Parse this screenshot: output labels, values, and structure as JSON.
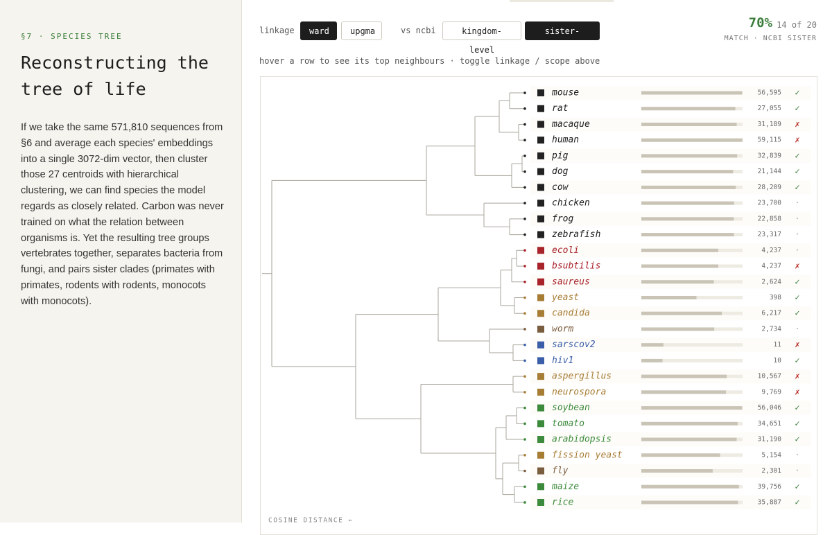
{
  "sidebar": {
    "section": "§7 · SPECIES TREE",
    "title": [
      "Reconstructing the",
      "tree of life"
    ],
    "body": "If we take the same 571,810 sequences from §6 and average each species' embeddings into a single 3072-dim vector, then cluster those 27 centroids with hierarchical clustering, we can find species the model regards as closely related. Carbon was never trained on what the relation between organisms is. Yet the resulting tree groups vertebrates together, separates bacteria from fungi, and pairs sister clades (primates with primates, rodents with rodents, monocots with monocots)."
  },
  "controls": {
    "linkage_label": "linkage",
    "linkage_options": [
      "ward",
      "upgma"
    ],
    "active_linkage": 0,
    "scope_label": "vs ncbi",
    "scope_options": [
      "kingdom-level",
      "sister-level"
    ],
    "active_scope": 1
  },
  "score": {
    "percent": "70%",
    "count": "14 of 20",
    "caption": "MATCH · NCBI SISTER"
  },
  "hint": "hover a row to see its top neighbours · toggle linkage / scope above",
  "axis_label": "COSINE DISTANCE ←",
  "rows": [
    {
      "name": "mouse",
      "color": "#222222",
      "count": 56595,
      "count_label": "56,595",
      "match": "✓",
      "match_color": "#3a7d3a"
    },
    {
      "name": "rat",
      "color": "#222222",
      "count": 27055,
      "count_label": "27,055",
      "match": "✓",
      "match_color": "#3a7d3a"
    },
    {
      "name": "macaque",
      "color": "#222222",
      "count": 31189,
      "count_label": "31,189",
      "match": "✗",
      "match_color": "#b3261e"
    },
    {
      "name": "human",
      "color": "#222222",
      "count": 59115,
      "count_label": "59,115",
      "match": "✗",
      "match_color": "#b3261e"
    },
    {
      "name": "pig",
      "color": "#222222",
      "count": 32839,
      "count_label": "32,839",
      "match": "✓",
      "match_color": "#3a7d3a"
    },
    {
      "name": "dog",
      "color": "#222222",
      "count": 21144,
      "count_label": "21,144",
      "match": "✓",
      "match_color": "#3a7d3a"
    },
    {
      "name": "cow",
      "color": "#222222",
      "count": 28209,
      "count_label": "28,209",
      "match": "✓",
      "match_color": "#3a7d3a"
    },
    {
      "name": "chicken",
      "color": "#222222",
      "count": 23700,
      "count_label": "23,700",
      "match": "·",
      "match_color": "#b0aca0"
    },
    {
      "name": "frog",
      "color": "#222222",
      "count": 22858,
      "count_label": "22,858",
      "match": "·",
      "match_color": "#b0aca0"
    },
    {
      "name": "zebrafish",
      "color": "#222222",
      "count": 23317,
      "count_label": "23,317",
      "match": "·",
      "match_color": "#b0aca0"
    },
    {
      "name": "ecoli",
      "color": "#a8232a",
      "count": 4237,
      "count_label": "4,237",
      "match": "·",
      "match_color": "#b0aca0"
    },
    {
      "name": "bsubtilis",
      "color": "#a8232a",
      "count": 4237,
      "count_label": "4,237",
      "match": "✗",
      "match_color": "#b3261e"
    },
    {
      "name": "saureus",
      "color": "#a8232a",
      "count": 2624,
      "count_label": "2,624",
      "match": "✓",
      "match_color": "#3a7d3a"
    },
    {
      "name": "yeast",
      "color": "#a77d35",
      "count": 398,
      "count_label": "398",
      "match": "✓",
      "match_color": "#3a7d3a"
    },
    {
      "name": "candida",
      "color": "#a77d35",
      "count": 6217,
      "count_label": "6,217",
      "match": "✓",
      "match_color": "#3a7d3a"
    },
    {
      "name": "worm",
      "color": "#7a5c3e",
      "count": 2734,
      "count_label": "2,734",
      "match": "·",
      "match_color": "#b0aca0"
    },
    {
      "name": "sarscov2",
      "color": "#3b5ea8",
      "count": 11,
      "count_label": "11",
      "match": "✗",
      "match_color": "#b3261e"
    },
    {
      "name": "hiv1",
      "color": "#3b5ea8",
      "count": 10,
      "count_label": "10",
      "match": "✓",
      "match_color": "#3a7d3a"
    },
    {
      "name": "aspergillus",
      "color": "#a77d35",
      "count": 10567,
      "count_label": "10,567",
      "match": "✗",
      "match_color": "#b3261e"
    },
    {
      "name": "neurospora",
      "color": "#a77d35",
      "count": 9769,
      "count_label": "9,769",
      "match": "✗",
      "match_color": "#b3261e"
    },
    {
      "name": "soybean",
      "color": "#3c8a3c",
      "count": 56046,
      "count_label": "56,046",
      "match": "✓",
      "match_color": "#3a7d3a"
    },
    {
      "name": "tomato",
      "color": "#3c8a3c",
      "count": 34651,
      "count_label": "34,651",
      "match": "✓",
      "match_color": "#3a7d3a"
    },
    {
      "name": "arabidopsis",
      "color": "#3c8a3c",
      "count": 31190,
      "count_label": "31,190",
      "match": "✓",
      "match_color": "#3a7d3a"
    },
    {
      "name": "fission yeast",
      "color": "#a77d35",
      "count": 5154,
      "count_label": "5,154",
      "match": "·",
      "match_color": "#b0aca0"
    },
    {
      "name": "fly",
      "color": "#7a5c3e",
      "count": 2301,
      "count_label": "2,301",
      "match": "·",
      "match_color": "#b0aca0"
    },
    {
      "name": "maize",
      "color": "#3c8a3c",
      "count": 39756,
      "count_label": "39,756",
      "match": "✓",
      "match_color": "#3a7d3a"
    },
    {
      "name": "rice",
      "color": "#3c8a3c",
      "count": 35887,
      "count_label": "35,887",
      "match": "✓",
      "match_color": "#3a7d3a"
    }
  ]
}
